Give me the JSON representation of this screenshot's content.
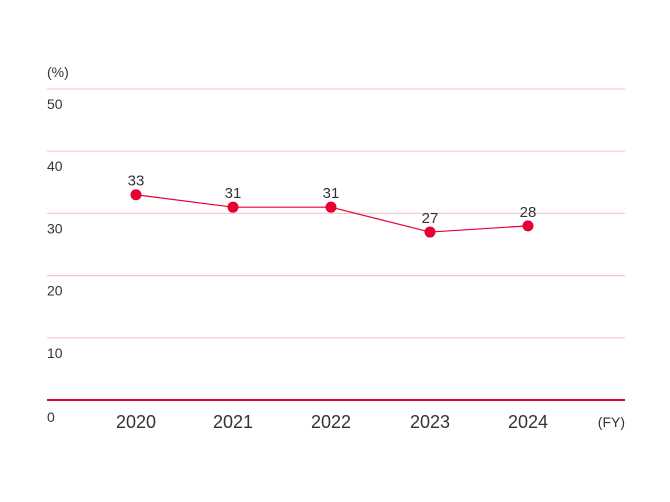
{
  "chart_data": {
    "type": "line",
    "ylabel": "(%)",
    "xlabel": "(FY)",
    "categories": [
      "2020",
      "2021",
      "2022",
      "2023",
      "2024"
    ],
    "series": [
      {
        "values": [
          33,
          31,
          31,
          27,
          28
        ]
      }
    ],
    "ylim": [
      0,
      50
    ],
    "yticks": [
      "0",
      "10",
      "20",
      "30",
      "40",
      "50"
    ],
    "grid": true,
    "colors": {
      "line": "#e60033",
      "grid": "#f5c9d6",
      "axis": "#e60033"
    }
  }
}
